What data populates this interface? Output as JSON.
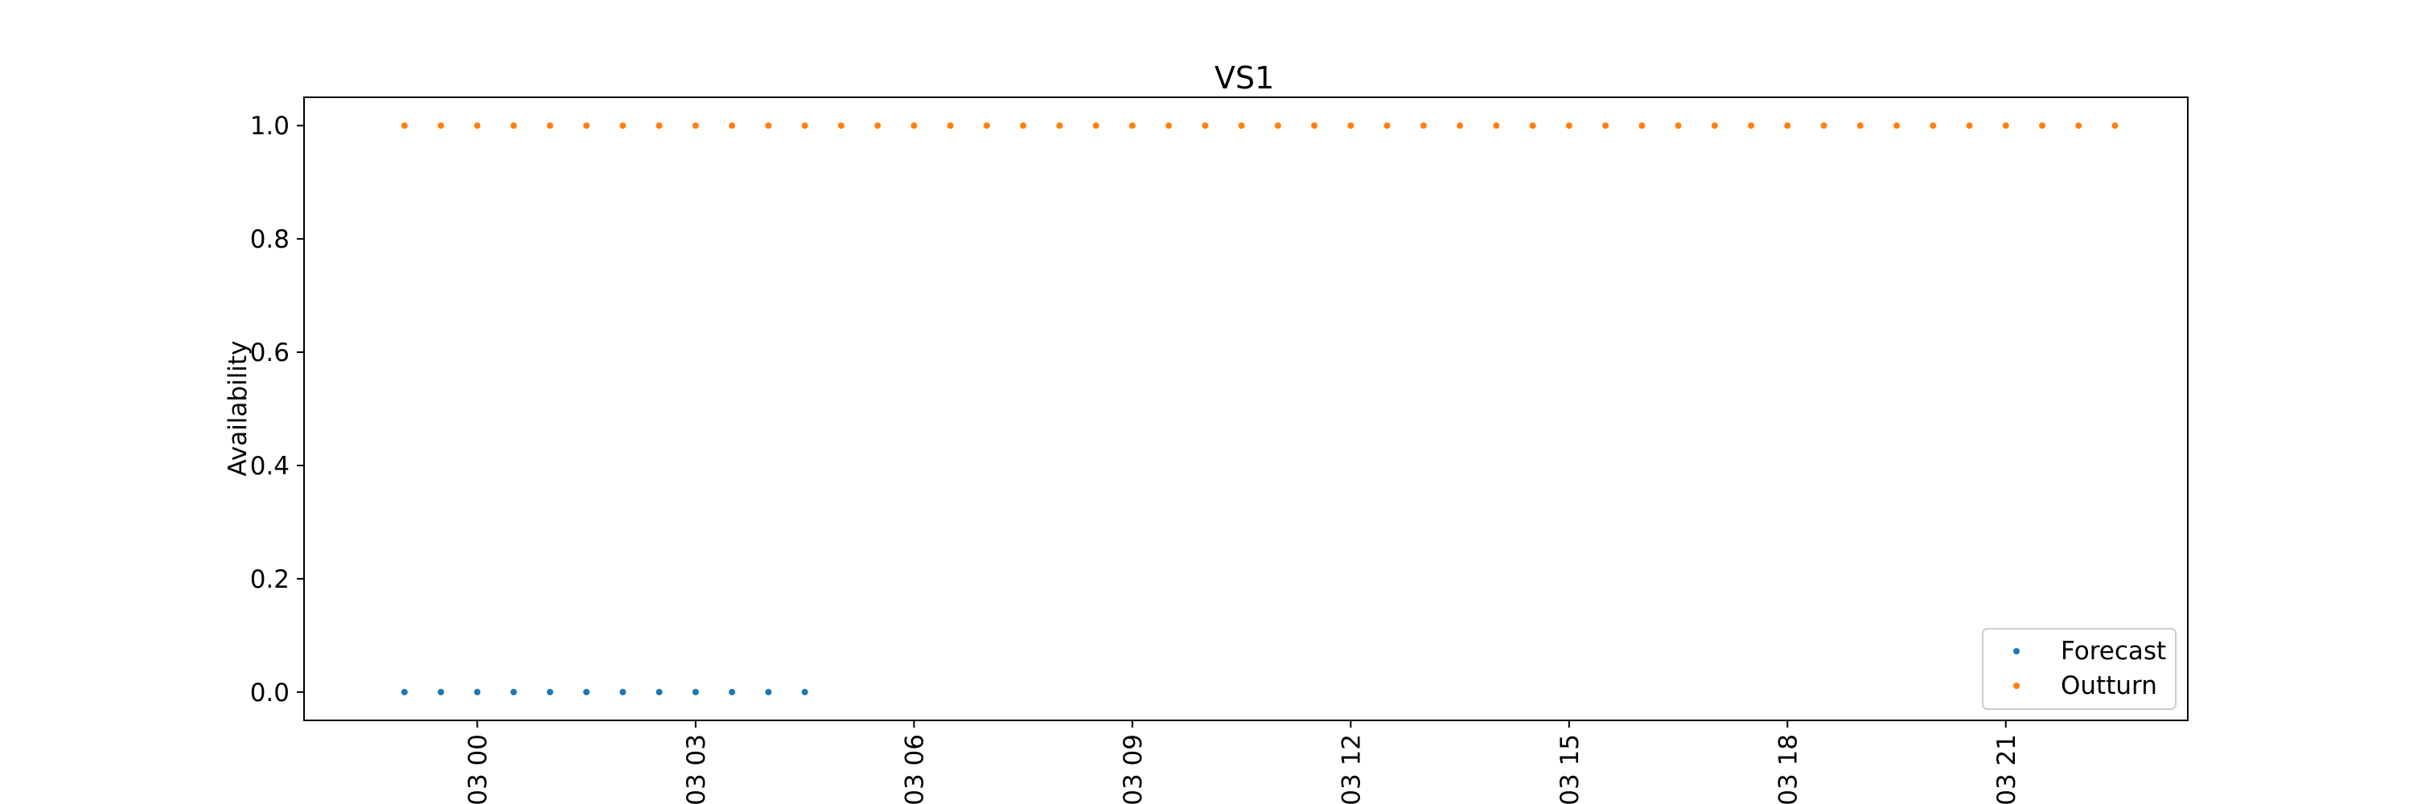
{
  "chart_data": {
    "type": "scatter",
    "title": "VS1",
    "xlabel": "",
    "ylabel": "Availability",
    "ylim": [
      -0.05,
      1.05
    ],
    "xlim_hours": [
      -2.38,
      23.5
    ],
    "yticks": [
      {
        "value": 0.0,
        "label": "0.0"
      },
      {
        "value": 0.2,
        "label": "0.2"
      },
      {
        "value": 0.4,
        "label": "0.4"
      },
      {
        "value": 0.6,
        "label": "0.6"
      },
      {
        "value": 0.8,
        "label": "0.8"
      },
      {
        "value": 1.0,
        "label": "1.0"
      }
    ],
    "xticks": [
      {
        "hour": 0,
        "label": "-03 00"
      },
      {
        "hour": 3,
        "label": "-03 03"
      },
      {
        "hour": 6,
        "label": "-03 06"
      },
      {
        "hour": 9,
        "label": "-03 09"
      },
      {
        "hour": 12,
        "label": "-03 12"
      },
      {
        "hour": 15,
        "label": "-03 15"
      },
      {
        "hour": 18,
        "label": "-03 18"
      },
      {
        "hour": 21,
        "label": "-03 21"
      }
    ],
    "series": [
      {
        "name": "Forecast",
        "color": "#1f77b4",
        "x_hours": [
          -1.0,
          -0.5,
          0.0,
          0.5,
          1.0,
          1.5,
          2.0,
          2.5,
          3.0,
          3.5,
          4.0,
          4.5
        ],
        "values": [
          0,
          0,
          0,
          0,
          0,
          0,
          0,
          0,
          0,
          0,
          0,
          0
        ]
      },
      {
        "name": "Outturn",
        "color": "#ff7f0e",
        "x_hours": [
          -1.0,
          -0.5,
          0.0,
          0.5,
          1.0,
          1.5,
          2.0,
          2.5,
          3.0,
          3.5,
          4.0,
          4.5,
          5.0,
          5.5,
          6.0,
          6.5,
          7.0,
          7.5,
          8.0,
          8.5,
          9.0,
          9.5,
          10.0,
          10.5,
          11.0,
          11.5,
          12.0,
          12.5,
          13.0,
          13.5,
          14.0,
          14.5,
          15.0,
          15.5,
          16.0,
          16.5,
          17.0,
          17.5,
          18.0,
          18.5,
          19.0,
          19.5,
          20.0,
          20.5,
          21.0,
          21.5,
          22.0,
          22.5
        ],
        "values": [
          1,
          1,
          1,
          1,
          1,
          1,
          1,
          1,
          1,
          1,
          1,
          1,
          1,
          1,
          1,
          1,
          1,
          1,
          1,
          1,
          1,
          1,
          1,
          1,
          1,
          1,
          1,
          1,
          1,
          1,
          1,
          1,
          1,
          1,
          1,
          1,
          1,
          1,
          1,
          1,
          1,
          1,
          1,
          1,
          1,
          1,
          1,
          1
        ]
      }
    ],
    "legend": {
      "position": "lower-right"
    }
  }
}
